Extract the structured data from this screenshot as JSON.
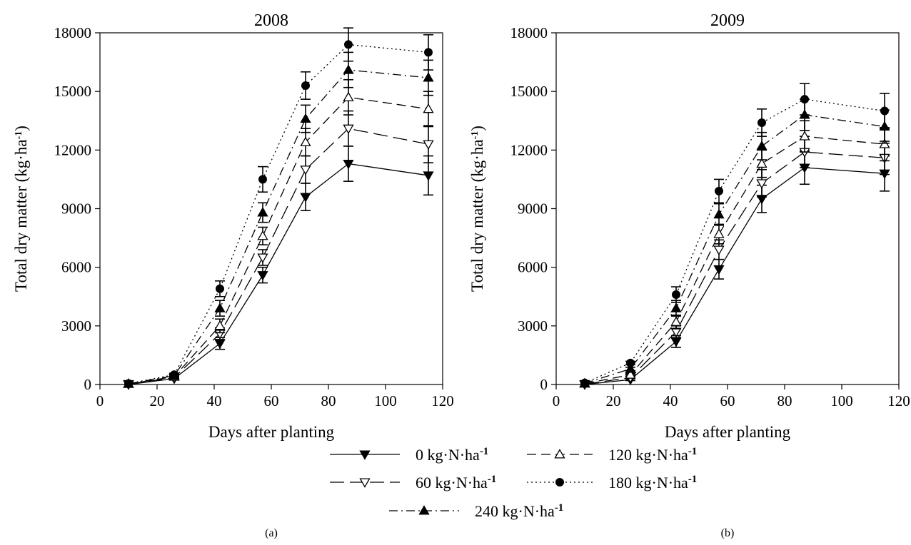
{
  "figure": {
    "legend_position": "bottom-center",
    "legend": [
      {
        "label": "0 kg·N·ha",
        "sup": "-1",
        "line": "solid",
        "marker": "triangle-down"
      },
      {
        "label": "120 kg·N·ha",
        "sup": "-1",
        "line": "dashed",
        "marker": "triangle-up-open"
      },
      {
        "label": "60 kg·N·ha",
        "sup": "-1",
        "line": "long-dash",
        "marker": "triangle-down-open"
      },
      {
        "label": "180 kg·N·ha",
        "sup": "-1",
        "line": "dotted",
        "marker": "circle"
      },
      {
        "label": "240 kg·N·ha",
        "sup": "-1",
        "line": "dash-dot",
        "marker": "triangle-up"
      }
    ]
  },
  "chart_data": [
    {
      "type": "line",
      "panel_label": "(a)",
      "title": "2008",
      "xlabel": "Days after planting",
      "ylabel": "Total dry matter (kg·ha",
      "ylabel_sup": "-1",
      "ylabel_close": ")",
      "xlim": [
        0,
        120
      ],
      "ylim": [
        0,
        18000
      ],
      "xticks": [
        0,
        20,
        40,
        60,
        80,
        100,
        120
      ],
      "yticks": [
        0,
        3000,
        6000,
        9000,
        12000,
        15000,
        18000
      ],
      "grid": false,
      "x": [
        10,
        26,
        42,
        57,
        72,
        87,
        115
      ],
      "series": [
        {
          "name": "0 kg·N·ha-1",
          "values": [
            0,
            300,
            2100,
            5600,
            9600,
            11300,
            10700
          ],
          "error": [
            0,
            50,
            300,
            400,
            700,
            900,
            1000
          ]
        },
        {
          "name": "60 kg·N·ha-1",
          "values": [
            20,
            350,
            2600,
            6500,
            11000,
            13100,
            12300
          ],
          "error": [
            0,
            60,
            300,
            400,
            700,
            900,
            950
          ]
        },
        {
          "name": "120 kg·N·ha-1",
          "values": [
            30,
            400,
            3000,
            7600,
            12400,
            14700,
            14100
          ],
          "error": [
            0,
            70,
            350,
            450,
            700,
            900,
            900
          ]
        },
        {
          "name": "240 kg·N·ha-1",
          "values": [
            40,
            450,
            3900,
            8800,
            13600,
            16100,
            15700
          ],
          "error": [
            0,
            80,
            400,
            500,
            700,
            900,
            900
          ]
        },
        {
          "name": "180 kg·N·ha-1",
          "values": [
            50,
            500,
            4900,
            10500,
            15300,
            17400,
            17000
          ],
          "error": [
            0,
            80,
            400,
            650,
            700,
            850,
            900
          ]
        }
      ]
    },
    {
      "type": "line",
      "panel_label": "(b)",
      "title": "2009",
      "xlabel": "Days after planting",
      "ylabel": "Total dry matter (kg·ha",
      "ylabel_sup": "-1",
      "ylabel_close": ")",
      "xlim": [
        0,
        120
      ],
      "ylim": [
        0,
        18000
      ],
      "xticks": [
        0,
        20,
        40,
        60,
        80,
        100,
        120
      ],
      "yticks": [
        0,
        3000,
        6000,
        9000,
        12000,
        15000,
        18000
      ],
      "grid": false,
      "x": [
        10,
        26,
        42,
        57,
        72,
        87,
        115
      ],
      "series": [
        {
          "name": "0 kg·N·ha-1",
          "values": [
            0,
            250,
            2200,
            5900,
            9500,
            11100,
            10800
          ],
          "error": [
            0,
            50,
            300,
            500,
            700,
            850,
            900
          ]
        },
        {
          "name": "60 kg·N·ha-1",
          "values": [
            20,
            350,
            2700,
            6900,
            10300,
            11900,
            11600
          ],
          "error": [
            0,
            60,
            300,
            500,
            700,
            800,
            850
          ]
        },
        {
          "name": "120 kg·N·ha-1",
          "values": [
            40,
            500,
            3200,
            7700,
            11300,
            12700,
            12300
          ],
          "error": [
            0,
            70,
            350,
            500,
            700,
            800,
            850
          ]
        },
        {
          "name": "240 kg·N·ha-1",
          "values": [
            60,
            800,
            3900,
            8700,
            12200,
            13800,
            13200
          ],
          "error": [
            0,
            80,
            400,
            550,
            700,
            800,
            850
          ]
        },
        {
          "name": "180 kg·N·ha-1",
          "values": [
            80,
            1100,
            4600,
            9900,
            13400,
            14600,
            14000
          ],
          "error": [
            0,
            90,
            400,
            600,
            700,
            800,
            900
          ]
        }
      ]
    }
  ]
}
